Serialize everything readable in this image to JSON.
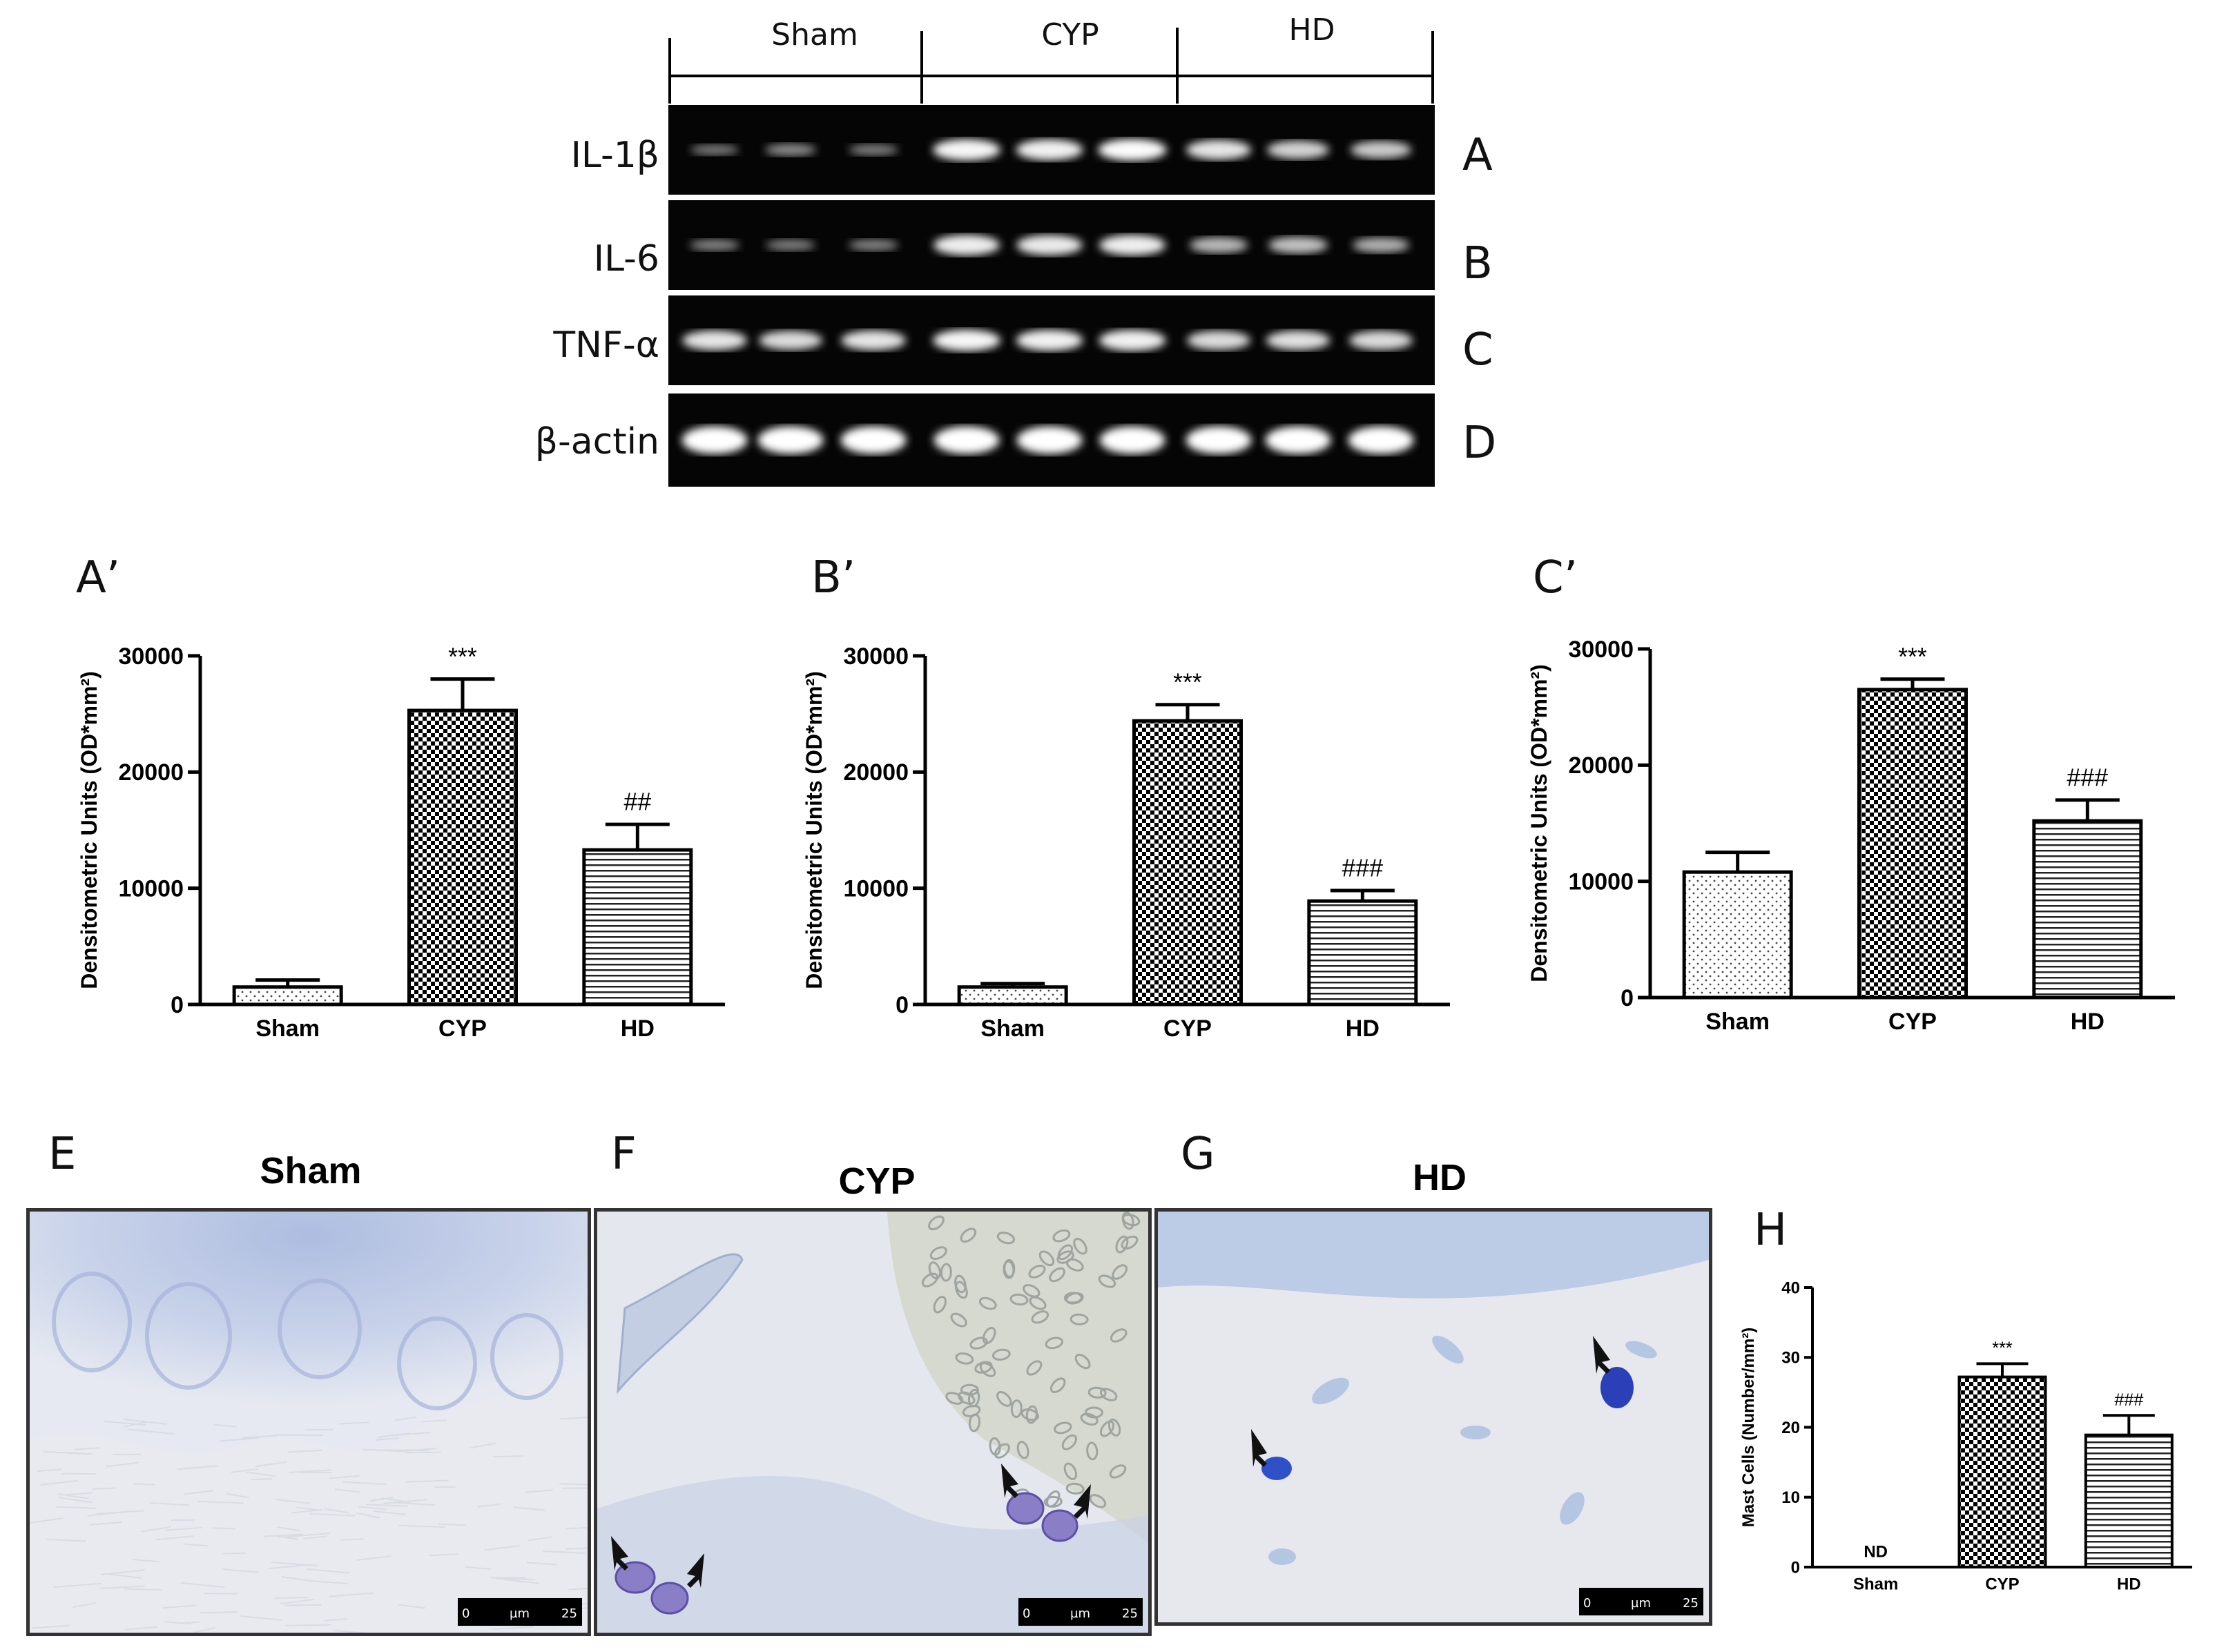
{
  "gel": {
    "groups": [
      "Sham",
      "CYP",
      "HD"
    ],
    "rows": [
      {
        "label": "IL-1β",
        "letter": "A",
        "intensity": [
          0.25,
          0.35,
          0.28,
          0.95,
          0.92,
          0.98,
          0.85,
          0.75,
          0.7
        ]
      },
      {
        "label": "IL-6",
        "letter": "B",
        "intensity": [
          0.3,
          0.28,
          0.3,
          0.9,
          0.88,
          0.9,
          0.6,
          0.65,
          0.55
        ]
      },
      {
        "label": "TNF-α",
        "letter": "C",
        "intensity": [
          0.85,
          0.8,
          0.85,
          0.95,
          0.92,
          0.92,
          0.8,
          0.82,
          0.8
        ]
      },
      {
        "label": "β-actin",
        "letter": "D",
        "intensity": [
          1,
          1,
          1,
          1,
          1,
          1,
          1,
          1,
          1
        ]
      }
    ]
  },
  "chart_data": [
    {
      "panel": "A’",
      "type": "bar",
      "categories": [
        "Sham",
        "CYP",
        "HD"
      ],
      "values": [
        1500,
        25300,
        13300
      ],
      "errors": [
        600,
        2700,
        2200
      ],
      "annotations": [
        "",
        "***",
        "##"
      ],
      "patterns": [
        "dots",
        "checker",
        "hlines"
      ],
      "ylabel": "Densitometric Units (OD*mm²)",
      "ylim": [
        0,
        30000
      ],
      "yticks": [
        "0",
        "10000",
        "20000",
        "30000"
      ],
      "tickvals": [
        0,
        10000,
        20000,
        30000
      ]
    },
    {
      "panel": "B’",
      "type": "bar",
      "categories": [
        "Sham",
        "CYP",
        "HD"
      ],
      "values": [
        1500,
        24400,
        8900
      ],
      "errors": [
        300,
        1400,
        900
      ],
      "annotations": [
        "",
        "***",
        "###"
      ],
      "patterns": [
        "dots",
        "checker",
        "hlines"
      ],
      "ylabel": "Densitometric Units (OD*mm²)",
      "ylim": [
        0,
        30000
      ],
      "yticks": [
        "0",
        "10000",
        "20000",
        "30000"
      ],
      "tickvals": [
        0,
        10000,
        20000,
        30000
      ]
    },
    {
      "panel": "C’",
      "type": "bar",
      "categories": [
        "Sham",
        "CYP",
        "HD"
      ],
      "values": [
        10800,
        26500,
        15200
      ],
      "errors": [
        1700,
        900,
        1800
      ],
      "annotations": [
        "",
        "***",
        "###"
      ],
      "patterns": [
        "dots",
        "checker",
        "hlines"
      ],
      "ylabel": "Densitometric Units (OD*mm²)",
      "ylim": [
        0,
        30000
      ],
      "yticks": [
        "0",
        "10000",
        "20000",
        "30000"
      ],
      "tickvals": [
        0,
        10000,
        20000,
        30000
      ]
    },
    {
      "panel": "H",
      "type": "bar",
      "categories": [
        "Sham",
        "CYP",
        "HD"
      ],
      "values": [
        0,
        27.2,
        18.9
      ],
      "errors": [
        0,
        1.9,
        2.8
      ],
      "annotations": [
        "ND",
        "***",
        "###"
      ],
      "patterns": [
        "none",
        "checker",
        "hlines"
      ],
      "ylabel": "Mast Cells (Number/mm²)",
      "ylim": [
        0,
        40
      ],
      "yticks": [
        "0",
        "10",
        "20",
        "30",
        "40"
      ],
      "tickvals": [
        0,
        10,
        20,
        30,
        40
      ]
    }
  ],
  "micrographs": [
    {
      "letter": "E",
      "title": "Sham",
      "scale": {
        "start": "0",
        "unit": "µm",
        "end": "25"
      }
    },
    {
      "letter": "F",
      "title": "CYP",
      "scale": {
        "start": "0",
        "unit": "µm",
        "end": "25"
      }
    },
    {
      "letter": "G",
      "title": "HD",
      "scale": {
        "start": "0",
        "unit": "µm",
        "end": "25"
      }
    }
  ]
}
